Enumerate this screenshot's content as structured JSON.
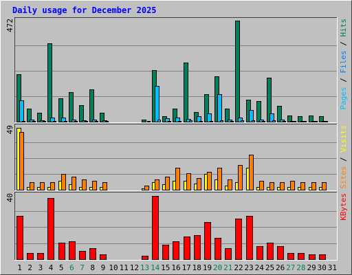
{
  "chart_data": {
    "type": "bar",
    "title": "Daily usage for December 2025",
    "x": [
      1,
      2,
      3,
      4,
      5,
      6,
      7,
      8,
      9,
      10,
      11,
      12,
      13,
      14,
      15,
      16,
      17,
      18,
      19,
      20,
      21,
      22,
      23,
      24,
      25,
      26,
      27,
      28,
      29,
      30,
      31
    ],
    "x_labels": [
      "1",
      "2",
      "3",
      "4",
      "5",
      "6",
      "7",
      "8",
      "9",
      "10",
      "11",
      "12",
      "13",
      "14",
      "15",
      "16",
      "17",
      "18",
      "19",
      "20",
      "21",
      "22",
      "23",
      "24",
      "25",
      "26",
      "27",
      "28",
      "29",
      "30",
      "31"
    ],
    "weekend_days": [
      6,
      7,
      13,
      14,
      20,
      21,
      27,
      28
    ],
    "panels": [
      {
        "id": "hits-files-pages",
        "ymax": 472,
        "ymax_label": "472",
        "series": [
          {
            "name": "Hits",
            "color": "#00805c",
            "values": [
              220,
              60,
              40,
              362,
              108,
              136,
              76,
              150,
              40,
              0,
              0,
              0,
              10,
              240,
              25,
              62,
              275,
              45,
              128,
              212,
              62,
              468,
              103,
              95,
              205,
              74,
              30,
              25,
              30,
              25,
              0
            ]
          },
          {
            "name": "Files",
            "color": "#00c0ff",
            "values": [
              100,
              8,
              6,
              18,
              20,
              10,
              6,
              8,
              6,
              0,
              0,
              0,
              0,
              166,
              16,
              20,
              14,
              26,
              38,
              128,
              10,
              20,
              55,
              8,
              38,
              8,
              4,
              4,
              4,
              4,
              0
            ]
          },
          {
            "name": "Pages",
            "color": "#00c0ff",
            "values": [
              4,
              2,
              2,
              4,
              3,
              3,
              2,
              3,
              2,
              0,
              0,
              0,
              1,
              8,
              3,
              3,
              5,
              4,
              4,
              6,
              3,
              6,
              5,
              3,
              5,
              3,
              2,
              2,
              2,
              2,
              0
            ]
          }
        ],
        "ylabel_parts": [
          {
            "text": "Pages",
            "color": "#00c0ff"
          },
          {
            "text": " / ",
            "color": "#000000"
          },
          {
            "text": "Files",
            "color": "#0080ff"
          },
          {
            "text": " / ",
            "color": "#000000"
          },
          {
            "text": "Hits",
            "color": "#00805c"
          }
        ]
      },
      {
        "id": "visits-sites",
        "ymax": 49,
        "ymax_label": "49",
        "series": [
          {
            "name": "Visits",
            "color": "#ffff00",
            "values": [
              48,
              2,
              2,
              2,
              7,
              4,
              2,
              2,
              2,
              0,
              0,
              0,
              1,
              6,
              4,
              7,
              7,
              5,
              12,
              8,
              3,
              6,
              17,
              2,
              2,
              2,
              2,
              2,
              2,
              2,
              0
            ]
          },
          {
            "name": "Sites",
            "color": "#ff8000",
            "values": [
              45,
              6,
              6,
              6,
              12,
              10,
              8,
              7,
              6,
              0,
              0,
              0,
              3,
              8,
              10,
              17,
              13,
              9,
              14,
              17,
              8,
              19,
              27,
              7,
              6,
              6,
              7,
              6,
              6,
              6,
              0
            ]
          }
        ],
        "ylabel_parts": [
          {
            "text": "Sites",
            "color": "#ff8000"
          },
          {
            "text": " / ",
            "color": "#000000"
          },
          {
            "text": "Visits",
            "color": "#ffff00"
          }
        ]
      },
      {
        "id": "kbytes",
        "ymax": 40,
        "ymax_label": "40",
        "series": [
          {
            "name": "KBytes",
            "color": "#ff0000",
            "values": [
              27,
              4,
              4,
              38,
              10,
              11,
              5,
              7,
              3,
              0,
              0,
              0,
              2,
              39,
              9,
              11,
              14,
              15,
              23,
              13,
              7,
              25,
              27,
              8,
              10,
              8,
              4,
              4,
              3,
              3,
              0
            ]
          }
        ],
        "ylabel_parts": [
          {
            "text": "KBytes",
            "color": "#ff0000"
          }
        ]
      }
    ]
  },
  "colors": {
    "title": "#0000ff",
    "plot_bg": "#c0c0c0",
    "grid": "#808080",
    "weekday_label": "#000000",
    "weekend_label": "#00805c"
  }
}
